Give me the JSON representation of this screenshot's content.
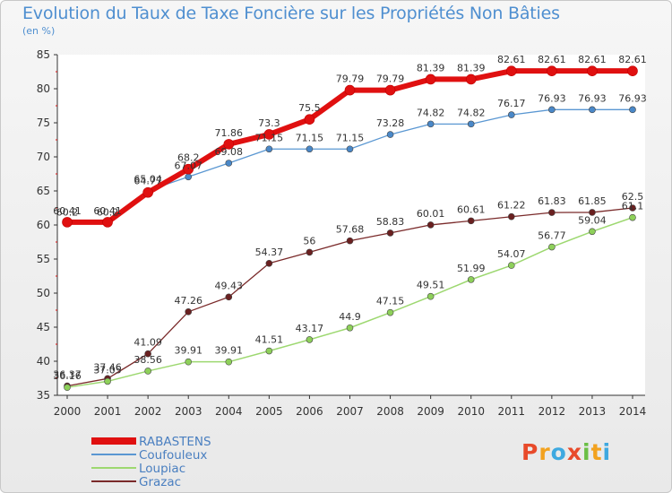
{
  "chart_data": {
    "type": "line",
    "title": "Evolution du Taux de Taxe Foncière sur les Propriétés Non Bâties",
    "ylabel": "(en %)",
    "xlabel": "",
    "x": [
      "2000",
      "2001",
      "2002",
      "2003",
      "2004",
      "2005",
      "2006",
      "2007",
      "2008",
      "2009",
      "2010",
      "2011",
      "2012",
      "2013",
      "2014"
    ],
    "ylim": [
      35,
      85
    ],
    "yticks": [
      35,
      40,
      45,
      50,
      55,
      60,
      65,
      70,
      75,
      80,
      85
    ],
    "grid": false,
    "legend_position": "bottom-left",
    "series": [
      {
        "name": "RABASTENS",
        "color": "#e01010",
        "width": 6,
        "values": [
          60.41,
          60.41,
          64.77,
          68.2,
          71.86,
          73.3,
          75.5,
          79.79,
          79.79,
          81.39,
          81.39,
          82.61,
          82.61,
          82.61,
          82.61
        ],
        "labels": [
          "60.41",
          "60.41",
          "64.77",
          "68.2",
          "71.86",
          "73.3",
          "75.5",
          "79.79",
          "79.79",
          "81.39",
          "81.39",
          "82.61",
          "82.61",
          "82.61",
          "82.61"
        ]
      },
      {
        "name": "Coufouleux",
        "color": "#5a97d2",
        "width": 1.3,
        "values": [
          60.2,
          60.2,
          65.04,
          67.07,
          69.08,
          71.15,
          71.15,
          71.15,
          73.28,
          74.82,
          74.82,
          76.17,
          76.93,
          76.93,
          76.93
        ],
        "labels": [
          "60.2",
          "60.2",
          "65.04",
          "67.07",
          "69.08",
          "71.15",
          "71.15",
          "71.15",
          "73.28",
          "74.82",
          "74.82",
          "76.17",
          "76.93",
          "76.93",
          "76.93"
        ]
      },
      {
        "name": "Loupiac",
        "color": "#9dd870",
        "width": 1.5,
        "values": [
          36.16,
          37.05,
          38.56,
          39.91,
          39.91,
          41.51,
          43.17,
          44.9,
          47.15,
          49.51,
          51.99,
          54.07,
          56.77,
          59.04,
          61.1
        ],
        "labels": [
          "36.16",
          "37.05",
          "38.56",
          "39.91",
          "39.91",
          "41.51",
          "43.17",
          "44.9",
          "47.15",
          "49.51",
          "51.99",
          "54.07",
          "56.77",
          "59.04",
          "61.1"
        ]
      },
      {
        "name": "Grazac",
        "color": "#7a2a2a",
        "width": 1.3,
        "values": [
          36.37,
          37.46,
          41.09,
          47.26,
          49.43,
          54.37,
          56,
          57.68,
          58.83,
          60.01,
          60.61,
          61.22,
          61.83,
          61.85,
          62.5
        ],
        "labels": [
          "36.37",
          "37.46",
          "41.09",
          "47.26",
          "49.43",
          "54.37",
          "56",
          "57.68",
          "58.83",
          "60.01",
          "60.61",
          "61.22",
          "61.83",
          "61.85",
          "62.5"
        ]
      }
    ],
    "marker_colors": {
      "RABASTENS": "#e01010",
      "Coufouleux": "#4a88c8",
      "Loupiac": "#8ed05a",
      "Grazac": "#6a2020"
    }
  }
}
